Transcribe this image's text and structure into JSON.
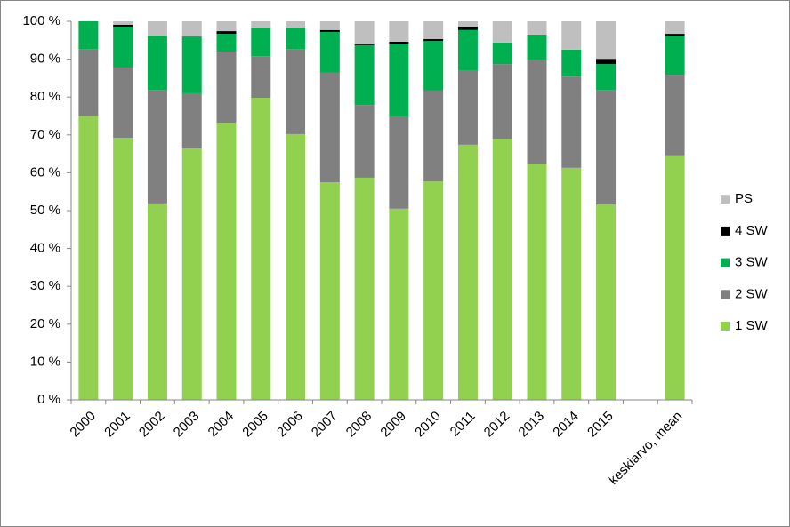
{
  "chart_data": {
    "type": "bar",
    "stacked": true,
    "categories": [
      "2000",
      "2001",
      "2002",
      "2003",
      "2004",
      "2005",
      "2006",
      "2007",
      "2008",
      "2009",
      "2010",
      "2011",
      "2012",
      "2013",
      "2014",
      "2015",
      null,
      "keskiarvo, mean"
    ],
    "series": [
      {
        "name": "1 SW",
        "color": "#92d050",
        "values": [
          75,
          69.2,
          51.9,
          66.4,
          73.2,
          79.8,
          70.2,
          57.5,
          58.7,
          50.5,
          57.7,
          67.4,
          69,
          62.4,
          61.3,
          51.6,
          null,
          64.6
        ]
      },
      {
        "name": "2 SW",
        "color": "#808080",
        "values": [
          17.7,
          18.6,
          30,
          14.6,
          18.8,
          11,
          22.5,
          28.9,
          19.2,
          24.4,
          24,
          19.5,
          19.7,
          27.5,
          24.1,
          30.3,
          null,
          21.3
        ]
      },
      {
        "name": "3 SW",
        "color": "#00b050",
        "values": [
          7.3,
          10.8,
          14.3,
          15,
          4.7,
          7.6,
          5.7,
          10.8,
          15.8,
          19.2,
          13.1,
          10.8,
          5.7,
          6.6,
          7.1,
          6.8,
          null,
          10.3
        ]
      },
      {
        "name": "4 SW",
        "color": "#000000",
        "values": [
          0,
          0.5,
          0,
          0,
          0.7,
          0,
          0,
          0.5,
          0.3,
          0.5,
          0.5,
          0.9,
          0,
          0,
          0,
          1.4,
          null,
          0.5
        ]
      },
      {
        "name": "PS",
        "color": "#bfbfbf",
        "values": [
          0,
          0.9,
          3.8,
          4,
          2.6,
          1.6,
          1.6,
          2.3,
          6,
          5.4,
          4.7,
          1.4,
          5.6,
          3.5,
          7.5,
          9.9,
          null,
          3.3
        ]
      }
    ],
    "ylim": [
      0,
      100
    ],
    "yticks": [
      {
        "value": 0,
        "label": "0 %"
      },
      {
        "value": 10,
        "label": "10 %"
      },
      {
        "value": 20,
        "label": "20 %"
      },
      {
        "value": 30,
        "label": "30 %"
      },
      {
        "value": 40,
        "label": "40 %"
      },
      {
        "value": 50,
        "label": "50 %"
      },
      {
        "value": 60,
        "label": "60 %"
      },
      {
        "value": 70,
        "label": "70 %"
      },
      {
        "value": 80,
        "label": "80 %"
      },
      {
        "value": 90,
        "label": "90 %"
      },
      {
        "value": 100,
        "label": "100 %"
      }
    ],
    "grid": false,
    "legend": "right"
  }
}
